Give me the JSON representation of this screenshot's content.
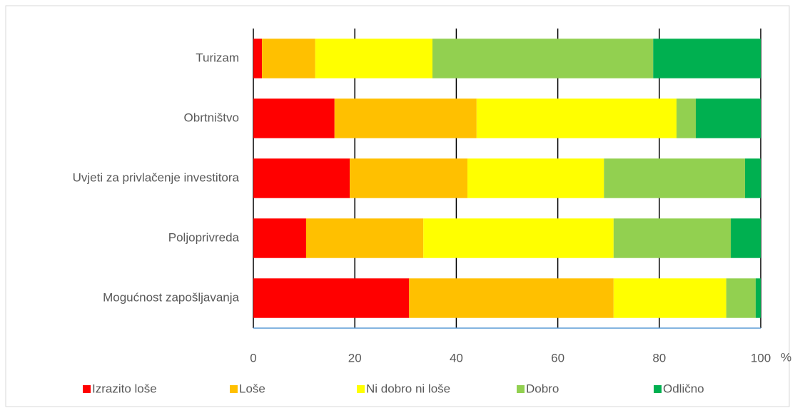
{
  "chart_data": {
    "type": "stacked_barh",
    "categories": [
      "Turizam",
      "Obrtništvo",
      "Uvjeti za privlačenje investitora",
      "Poljoprivreda",
      "Mogućnost zapošljavanja"
    ],
    "series": [
      {
        "name": "Izrazito loše",
        "color": "#ff0000",
        "values": [
          1.7,
          16.0,
          19.0,
          10.4,
          30.7
        ]
      },
      {
        "name": "Loše",
        "color": "#ffc000",
        "values": [
          10.5,
          28.0,
          23.2,
          23.1,
          40.3
        ]
      },
      {
        "name": "Ni dobro ni loše",
        "color": "#ffff00",
        "values": [
          23.1,
          39.4,
          26.9,
          37.5,
          22.2
        ]
      },
      {
        "name": "Dobro",
        "color": "#92d050",
        "values": [
          43.5,
          3.8,
          27.8,
          23.1,
          5.8
        ]
      },
      {
        "name": "Odlično",
        "color": "#00b050",
        "values": [
          21.2,
          12.8,
          3.1,
          5.9,
          1.0
        ]
      }
    ],
    "xlim": [
      0,
      100
    ],
    "xticks": [
      0,
      20,
      40,
      60,
      80,
      100
    ],
    "x_unit": "%",
    "grid": true,
    "legend": "bottom"
  }
}
